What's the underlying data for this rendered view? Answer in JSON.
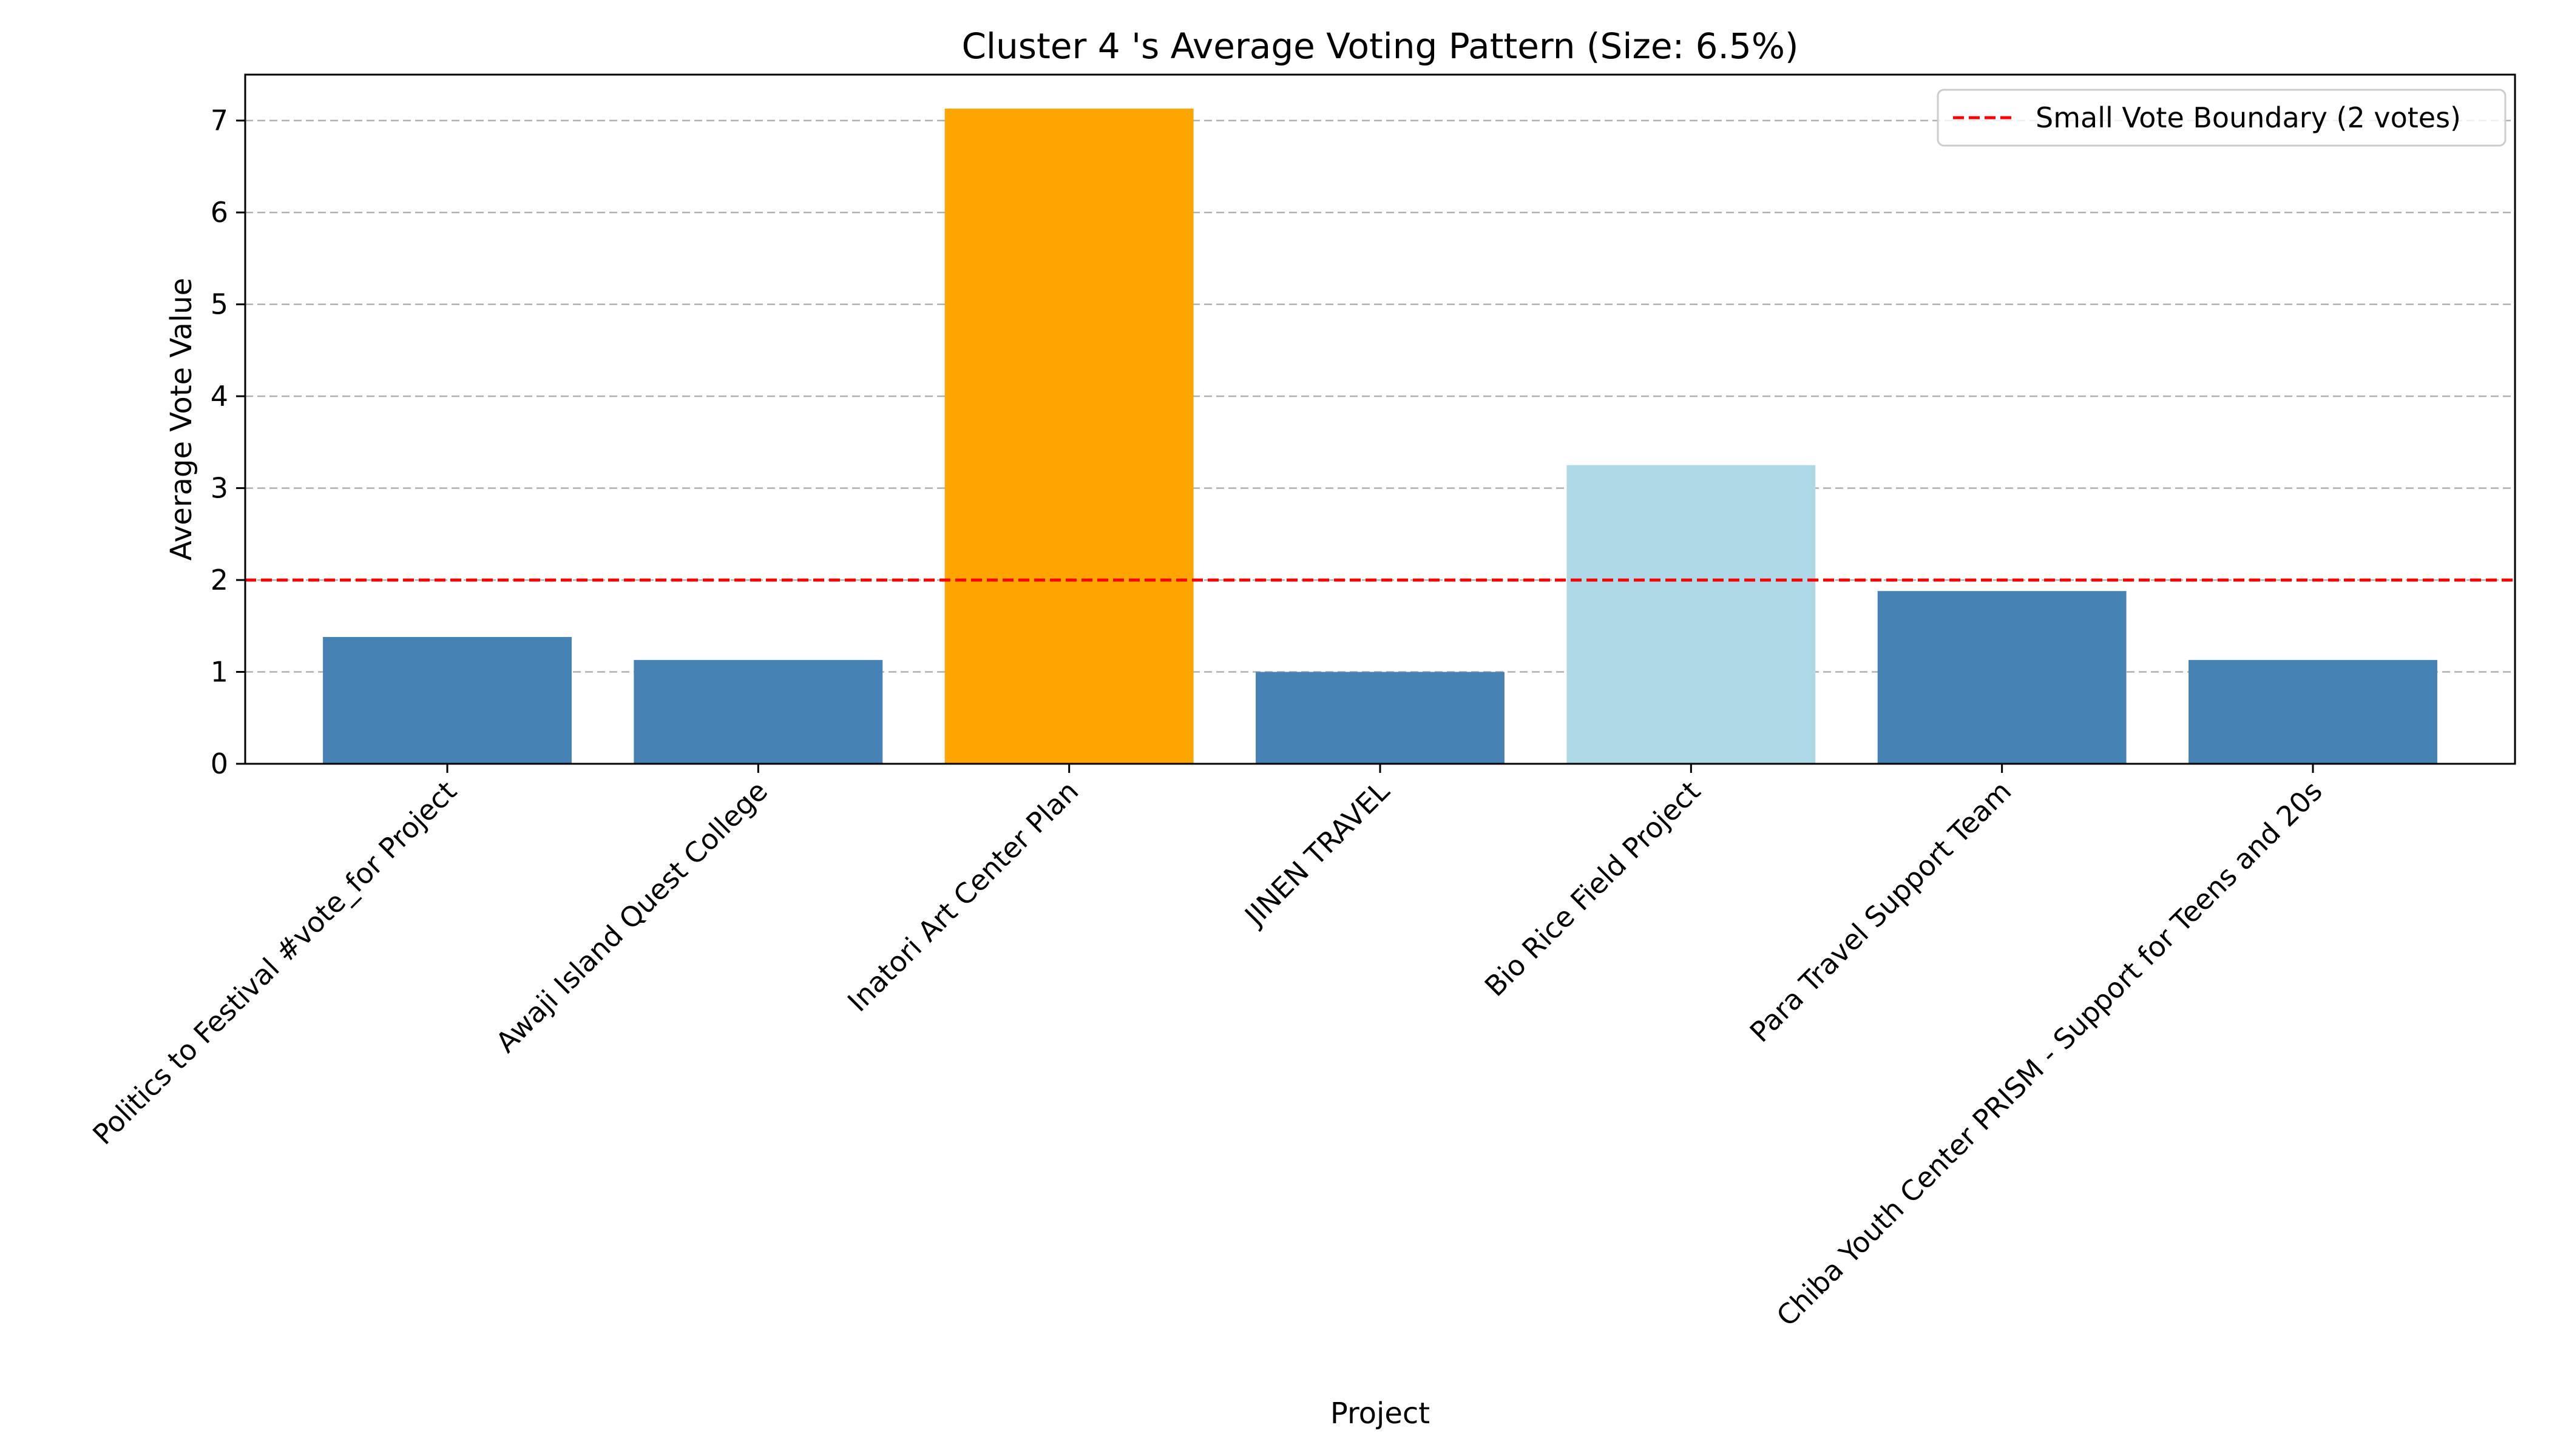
{
  "chart_data": {
    "type": "bar",
    "title": "Cluster 4 's Average Voting Pattern (Size: 6.5%)",
    "xlabel": "Project",
    "ylabel": "Average Vote Value",
    "categories": [
      "Politics to Festival #vote_for Project",
      "Awaji Island Quest College",
      "Inatori Art Center Plan",
      "JINEN TRAVEL",
      "Bio Rice Field Project",
      "Para Travel Support Team",
      "Chiba Youth Center PRISM - Support for Teens and 20s"
    ],
    "values": [
      1.38,
      1.13,
      7.13,
      1.0,
      3.25,
      1.88,
      1.13
    ],
    "bar_colors": [
      "#4682b4",
      "#4682b4",
      "#ffa500",
      "#4682b4",
      "#add8e6",
      "#4682b4",
      "#4682b4"
    ],
    "ylim": [
      0,
      7.5
    ],
    "yticks": [
      0,
      1,
      2,
      3,
      4,
      5,
      6,
      7
    ],
    "grid": "y-dashed",
    "reference_line": {
      "y": 2,
      "label": "Small Vote Boundary (2 votes)",
      "color": "#ff0000",
      "style": "dashed"
    },
    "legend_position": "top-right"
  }
}
